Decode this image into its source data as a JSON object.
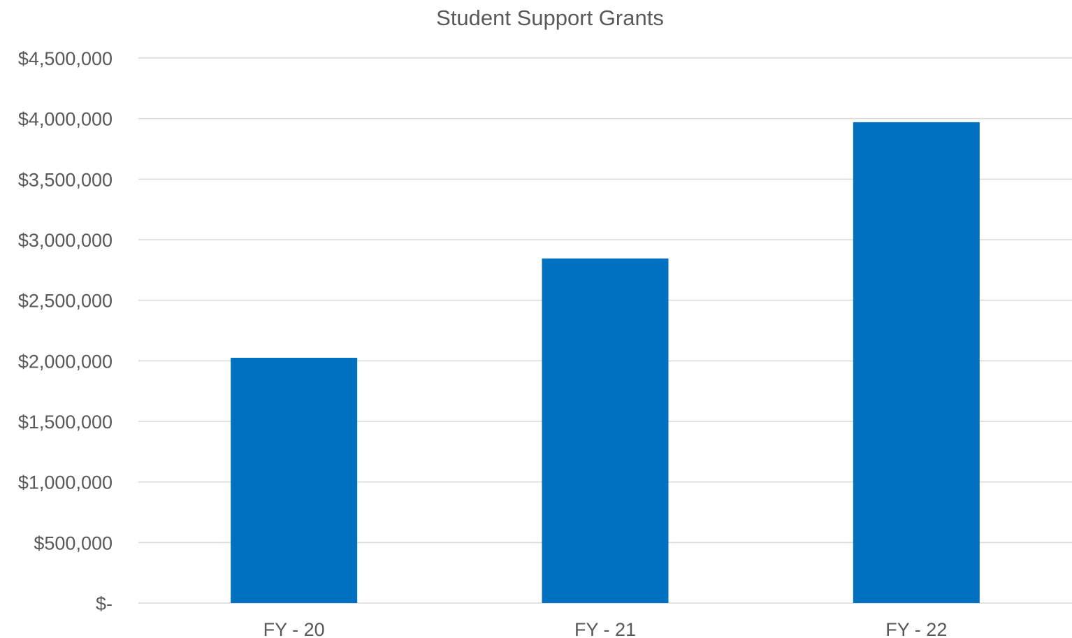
{
  "chart_data": {
    "type": "bar",
    "title": "Student Support Grants",
    "xlabel": "",
    "ylabel": "",
    "categories": [
      "FY - 20",
      "FY - 21",
      "FY - 22"
    ],
    "series": [
      {
        "values": [
          2025000,
          2845000,
          3970000
        ]
      }
    ],
    "ylim": [
      0,
      4500000
    ],
    "yticks": [
      0,
      500000,
      1000000,
      1500000,
      2000000,
      2500000,
      3000000,
      3500000,
      4000000,
      4500000
    ],
    "ytick_labels": [
      "$-",
      "$500,000",
      "$1,000,000",
      "$1,500,000",
      "$2,000,000",
      "$2,500,000",
      "$3,000,000",
      "$3,500,000",
      "$4,000,000",
      "$4,500,000"
    ],
    "grid": true,
    "legend": "none",
    "colors": {
      "bar": "#0070c0",
      "grid": "#d9d9d9",
      "text": "#595959"
    }
  }
}
